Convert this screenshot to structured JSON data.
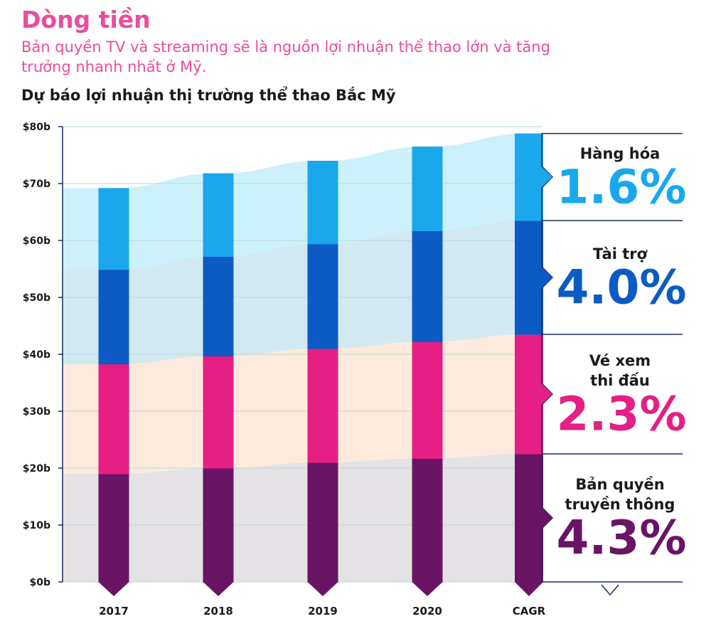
{
  "header": {
    "title": "Dòng tiền",
    "subtitle": "Bản quyền TV và streaming sẽ là nguồn lợi nhuận thể thao lớn và tăng trưởng nhanh nhất ở Mỹ.",
    "chart_title": "Dự báo lợi nhuận thị trường thể thao Bắc Mỹ"
  },
  "colors": {
    "media": "#6a1466",
    "tickets": "#e51f84",
    "sponsorship": "#0c5bc4",
    "merchandise": "#1aa7ec",
    "media_band": "#e4e2e4",
    "tickets_band": "#fcebdc",
    "sponsorship_band": "#d2e9f1",
    "merchandise_band": "#cdf1fa",
    "axis": "#1f2a5a",
    "title": "#ea4d9c"
  },
  "chart_data": {
    "type": "bar",
    "stacked": true,
    "categories": [
      "2017",
      "2018",
      "2019",
      "2020"
    ],
    "series": [
      {
        "name": "Bản quyền truyền thông",
        "values": [
          19,
          20,
          21,
          21.7
        ]
      },
      {
        "name": "Vé xem thi đấu",
        "values": [
          19.3,
          19.7,
          20,
          20.5
        ]
      },
      {
        "name": "Tài trợ",
        "values": [
          16.6,
          17.5,
          18.4,
          19.5
        ]
      },
      {
        "name": "Hàng hóa",
        "values": [
          14.3,
          14.6,
          14.6,
          14.8
        ]
      }
    ],
    "cagr": {
      "label": "CAGR",
      "stack_values": [
        22.5,
        21,
        20,
        15.3
      ]
    },
    "ylim": [
      0,
      80
    ],
    "yticks": [
      0,
      10,
      20,
      30,
      40,
      50,
      60,
      70,
      80
    ],
    "ytick_labels": [
      "$0b",
      "$10b",
      "$20b",
      "$30b",
      "$40b",
      "$50b",
      "$60b",
      "$70b",
      "$80b"
    ],
    "grid": true
  },
  "legend": [
    {
      "lines": [
        "Hàng hóa"
      ],
      "value": "1.6%",
      "color_key": "merchandise"
    },
    {
      "lines": [
        "Tài trợ"
      ],
      "value": "4.0%",
      "color_key": "sponsorship"
    },
    {
      "lines": [
        "Vé xem",
        "thi đấu"
      ],
      "value": "2.3%",
      "color_key": "tickets"
    },
    {
      "lines": [
        "Bản quyền",
        "truyền thông"
      ],
      "value": "4.3%",
      "color_key": "media"
    }
  ]
}
